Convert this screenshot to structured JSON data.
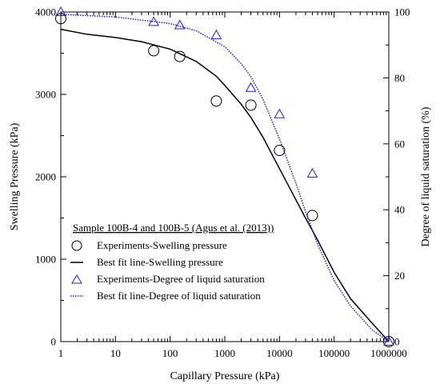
{
  "chart_data": {
    "type": "scatter",
    "x_scale": "log",
    "xlabel": "Capillary Pressure (kPa)",
    "ylabel_left": "Swelling Pressure (kPa)",
    "ylabel_right": "Degree of liquid saturation (%)",
    "xlim": [
      1,
      1000000
    ],
    "ylim_left": [
      0,
      4000
    ],
    "ylim_right": [
      0,
      100
    ],
    "x_ticks": [
      1,
      10,
      100,
      1000,
      10000,
      100000,
      1000000
    ],
    "x_tick_labels": [
      "1",
      "10",
      "100",
      "1000",
      "10000",
      "100000",
      "1000000"
    ],
    "y_left_ticks": [
      0,
      1000,
      2000,
      3000,
      4000
    ],
    "y_left_tick_labels": [
      "0",
      "1000",
      "2000",
      "3000",
      "4000"
    ],
    "y_right_ticks": [
      0,
      20,
      40,
      60,
      80,
      100
    ],
    "y_right_tick_labels": [
      "0",
      "20",
      "40",
      "60",
      "80",
      "100"
    ],
    "grid": false,
    "legend": {
      "title": "Sample 100B-4 and 100B-5 (Agus et al. (2013))",
      "placement": "lower-left"
    },
    "series": [
      {
        "name": "Experiments-Swelling pressure",
        "kind": "markers",
        "marker": "circle",
        "axis": "left",
        "color": "#000000",
        "x": [
          1,
          50,
          150,
          700,
          3000,
          10000,
          40000,
          1000000
        ],
        "y": [
          3920,
          3530,
          3460,
          2920,
          2870,
          2320,
          1530,
          0
        ]
      },
      {
        "name": "Best fit line-Swelling pressure",
        "kind": "line",
        "style": "solid",
        "axis": "left",
        "color": "#000000",
        "x": [
          1,
          3,
          10,
          30,
          100,
          300,
          700,
          1000,
          2000,
          3000,
          5000,
          10000,
          20000,
          30000,
          50000,
          100000,
          200000,
          500000,
          1000000
        ],
        "y": [
          3790,
          3730,
          3690,
          3640,
          3550,
          3400,
          3220,
          3110,
          2880,
          2720,
          2480,
          2100,
          1720,
          1500,
          1230,
          840,
          520,
          220,
          0
        ]
      },
      {
        "name": "Experiments-Degree of liquid saturation",
        "kind": "markers",
        "marker": "triangle",
        "axis": "right",
        "color": "#1f1fe6",
        "x": [
          1,
          50,
          150,
          700,
          3000,
          10000,
          40000,
          1000000
        ],
        "y": [
          100,
          97,
          96,
          93,
          77,
          69,
          51,
          0
        ]
      },
      {
        "name": "Best fit line-Degree of liquid saturation",
        "kind": "line",
        "style": "dotted",
        "axis": "right",
        "color": "#1f1fe6",
        "x": [
          1,
          10,
          100,
          300,
          1000,
          2000,
          3000,
          5000,
          10000,
          20000,
          30000,
          50000,
          100000,
          200000,
          500000,
          1000000
        ],
        "y": [
          99.3,
          98.5,
          96.5,
          94.3,
          89.5,
          84.3,
          80.4,
          73.5,
          61.5,
          48.0,
          39.5,
          29.5,
          18.5,
          10.8,
          3.5,
          0
        ]
      }
    ]
  }
}
